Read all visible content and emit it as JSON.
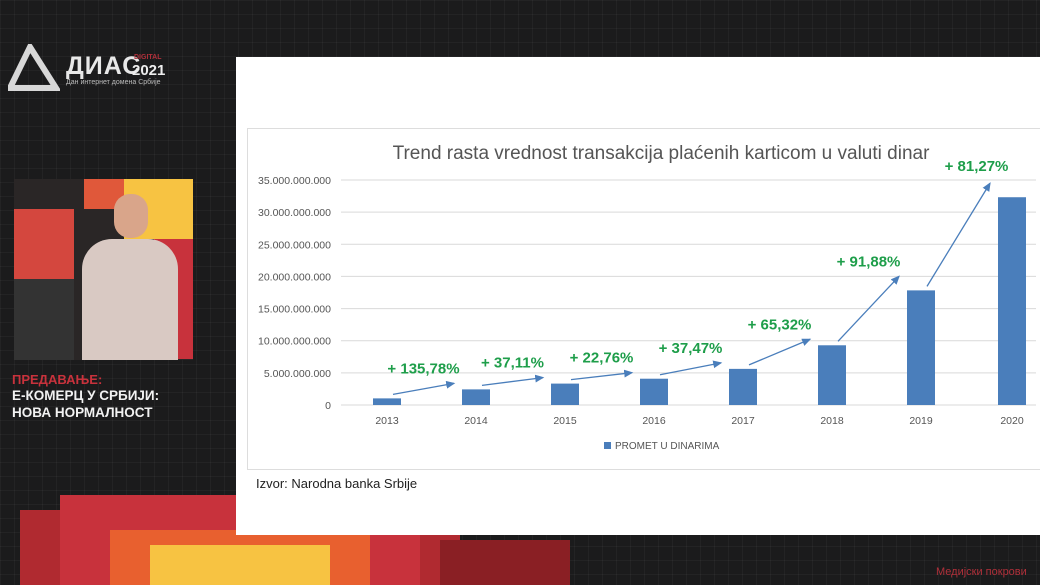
{
  "branding": {
    "logo_main": "ДИАС",
    "logo_year": "2021",
    "logo_digital": "DIGITAL",
    "logo_subtitle": "Дан интернет домена Србије"
  },
  "lecture": {
    "kicker": "ПРЕДАВАЊЕ:",
    "title_line1": "Е-КОМЕРЦ У СРБИЈИ:",
    "title_line2": "НОВА НОРМАЛНОСТ"
  },
  "slide": {
    "source": "Izvor: Narodna banka Srbije"
  },
  "footer": {
    "sponsor": "Медијски покрови"
  },
  "colors": {
    "bar": "#4a7ebb",
    "growth_label": "#1e9e4a",
    "accent_red": "#c8323c"
  },
  "chart_data": {
    "type": "bar",
    "title": "Trend rasta vrednost transakcija plaćenih karticom u valuti dinar",
    "categories": [
      "2013",
      "2014",
      "2015",
      "2016",
      "2017",
      "2018",
      "2019",
      "2020"
    ],
    "series": [
      {
        "name": "PROMET U DINARIMA",
        "values": [
          1030000000,
          2430000000,
          3330000000,
          4090000000,
          5620000000,
          9290000000,
          17830000000,
          32320000000
        ]
      }
    ],
    "growth_labels": [
      "+ 135,78%",
      "+ 37,11%",
      "+ 22,76%",
      "+ 37,47%",
      "+ 65,32%",
      "+ 91,88%",
      "+ 81,27%"
    ],
    "ylim": [
      0,
      35000000000
    ],
    "yticks": [
      "0",
      "5.000.000.000",
      "10.000.000.000",
      "15.000.000.000",
      "20.000.000.000",
      "25.000.000.000",
      "30.000.000.000",
      "35.000.000.000"
    ],
    "grid": true,
    "legend": "bottom"
  }
}
